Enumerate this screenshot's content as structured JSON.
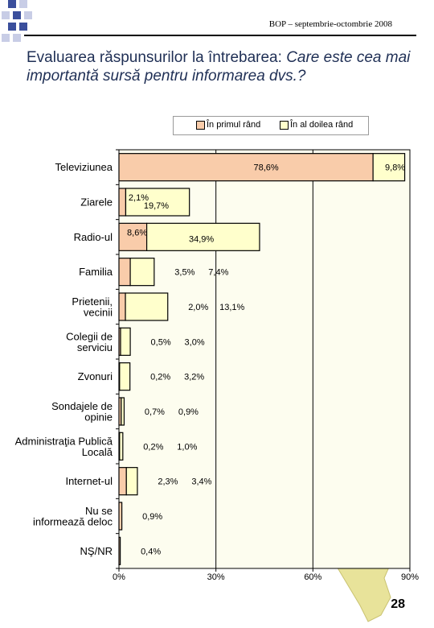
{
  "header": {
    "text": "BOP – septembrie-octombrie 2008",
    "page_number": "28"
  },
  "title": {
    "main": "Evaluarea răspunsurilor la întrebarea: ",
    "question": "Care este cea mai importantă sursă pentru informarea dvs.?"
  },
  "colors": {
    "first": "#f9ccaa",
    "second": "#ffffcc",
    "plot_bg": "#fdfdef",
    "map": "#e8e39a",
    "deco": "#3b4f9c"
  },
  "chart_data": {
    "type": "bar",
    "orientation": "horizontal",
    "stacked": true,
    "categories": [
      "Televiziunea",
      "Ziarele",
      "Radio-ul",
      "Familia",
      "Prietenii, vecinii",
      "Colegii de serviciu",
      "Zvonuri",
      "Sondajele de opinie",
      "Administraţia Publică Locală",
      "Internet-ul",
      "Nu se informează deloc",
      "NŞ/NR"
    ],
    "series": [
      {
        "name": "În primul rând",
        "values": [
          78.6,
          2.1,
          8.6,
          3.5,
          2.0,
          0.5,
          0.2,
          0.7,
          0.2,
          2.3,
          0.9,
          0.4
        ],
        "labels": [
          "78,6%",
          "2,1%",
          "8,6%",
          "3,5%",
          "2,0%",
          "0,5%",
          "0,2%",
          "0,7%",
          "0,2%",
          "2,3%",
          "0,9%",
          "0,4%"
        ]
      },
      {
        "name": "În al doilea rând",
        "values": [
          9.8,
          19.7,
          34.9,
          7.4,
          13.1,
          3.0,
          3.2,
          0.9,
          1.0,
          3.4,
          null,
          null
        ],
        "labels": [
          "9,8%",
          "19,7%",
          "34,9%",
          "7,4%",
          "13,1%",
          "3,0%",
          "3,2%",
          "0,9%",
          "1,0%",
          "3,4%",
          "",
          ""
        ]
      }
    ],
    "xlim": [
      0,
      90
    ],
    "xticks": [
      0,
      30,
      60,
      90
    ],
    "xtick_labels": [
      "0%",
      "30%",
      "60%",
      "90%"
    ],
    "grid": "vertical",
    "legend_position": "top"
  }
}
